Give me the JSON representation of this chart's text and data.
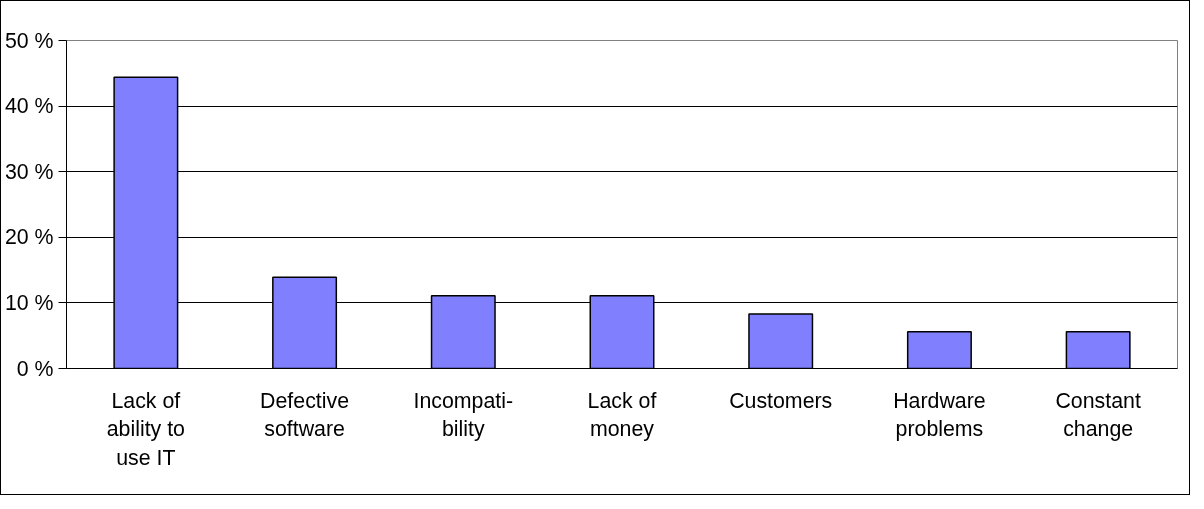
{
  "chart_data": {
    "type": "bar",
    "categories": [
      "Lack of\nability to\nuse IT",
      "Defective\nsoftware",
      "Incompati-\nbility",
      "Lack of\nmoney",
      "Customers",
      "Hardware\nproblems",
      "Constant\nchange"
    ],
    "values": [
      44.4,
      13.9,
      11.1,
      11.1,
      8.3,
      5.6,
      5.6
    ],
    "color": "#8080ff",
    "ylim": [
      0,
      50
    ],
    "yticks": [
      {
        "value": 0,
        "label": "0 %"
      },
      {
        "value": 10,
        "label": "10 %"
      },
      {
        "value": 20,
        "label": "20 %"
      },
      {
        "value": 30,
        "label": "30 %"
      },
      {
        "value": 40,
        "label": "40 %"
      },
      {
        "value": 50,
        "label": "50 %"
      }
    ],
    "grid": "y"
  }
}
